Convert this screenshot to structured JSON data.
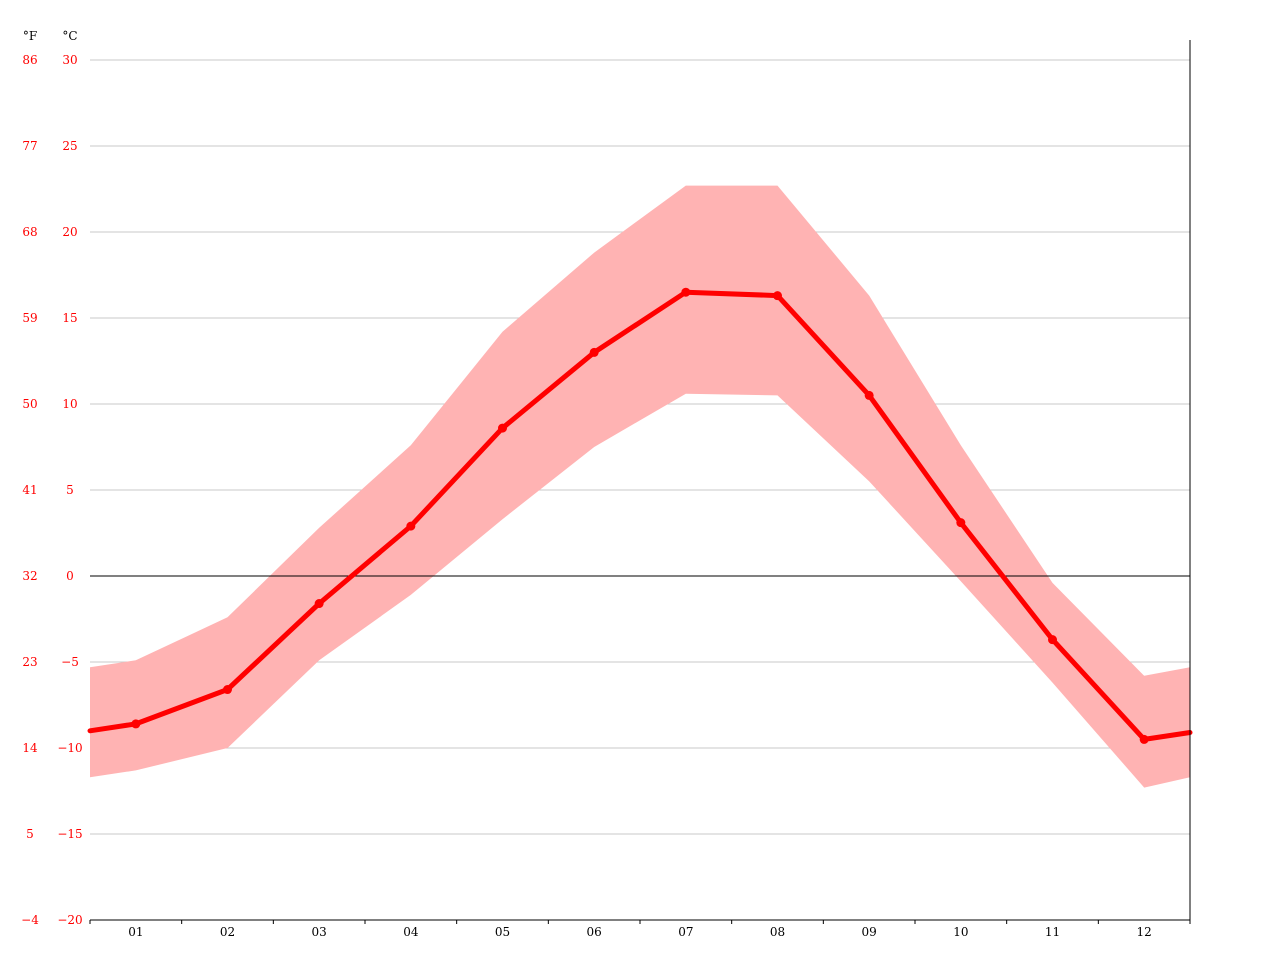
{
  "chart_data": {
    "type": "line",
    "units": {
      "fahrenheit": "°F",
      "celsius": "°C"
    },
    "categories": [
      "01",
      "02",
      "03",
      "04",
      "05",
      "06",
      "07",
      "08",
      "09",
      "10",
      "11",
      "12"
    ],
    "y_celsius_ticks": [
      "30",
      "25",
      "20",
      "15",
      "10",
      "5",
      "0",
      "−5",
      "−10",
      "−15",
      "−20"
    ],
    "y_fahrenheit_ticks": [
      "86",
      "77",
      "68",
      "59",
      "50",
      "41",
      "32",
      "23",
      "14",
      "5",
      "−4"
    ],
    "ylim_celsius": [
      -20,
      30
    ],
    "grid": true,
    "series": [
      {
        "key": "mean",
        "values": [
          -8.6,
          -6.6,
          -1.6,
          2.9,
          8.6,
          13.0,
          16.5,
          16.3,
          10.5,
          3.1,
          -3.7,
          -9.5
        ]
      },
      {
        "key": "max",
        "values": [
          -4.9,
          -2.4,
          2.8,
          7.6,
          14.2,
          18.8,
          22.7,
          22.7,
          16.3,
          7.6,
          -0.4,
          -5.8
        ]
      },
      {
        "key": "min",
        "values": [
          -11.3,
          -10.0,
          -4.9,
          -1.1,
          3.3,
          7.5,
          10.6,
          10.5,
          5.5,
          -0.3,
          -6.2,
          -12.3
        ]
      }
    ],
    "edge_values": {
      "left": {
        "mean": -9.0,
        "max": -5.3,
        "min": -11.7
      },
      "right": {
        "mean": -9.1,
        "max": -5.3,
        "min": -11.7
      }
    },
    "colors": {
      "line": "#ff0000",
      "band": "#ffb3b3",
      "tick_text": "#ff0000",
      "grid": "#c8c8c8",
      "zero_line": "#000000"
    }
  }
}
